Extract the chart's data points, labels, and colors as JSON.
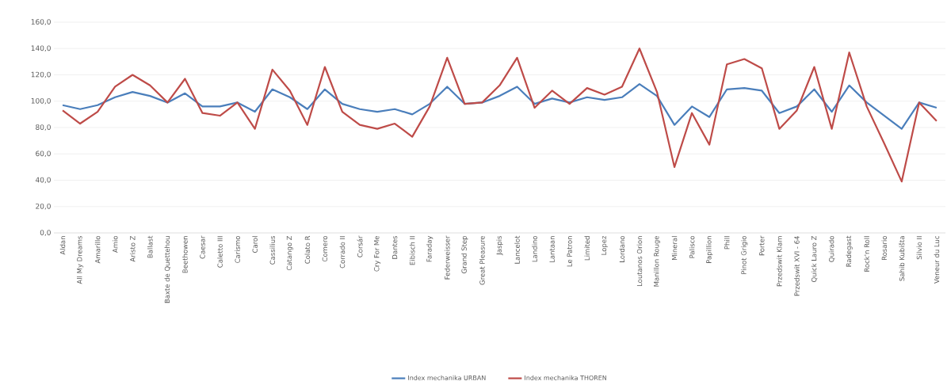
{
  "chart_data": {
    "type": "line",
    "categories": [
      "Aldan",
      "All My Dreams",
      "Amarillo",
      "Amio",
      "Aristo Z",
      "Ballast",
      "Baxte de Quettehou",
      "Beethowen",
      "Caesar",
      "Caletto III",
      "Carismo",
      "Carol",
      "Cassilius",
      "Catango Z",
      "Colato R",
      "Comero",
      "Corrado II",
      "Corsár",
      "Cry For Me",
      "Dantes",
      "Eibisch II",
      "Faraday",
      "Federweisser",
      "Grand Step",
      "Great Pleasure",
      "Jaspis",
      "Lancelot",
      "Landino",
      "Lantaan",
      "Le Patron",
      "Limited",
      "Lopez",
      "Lordano",
      "Loutanos Orion",
      "Manillon Rouge",
      "Mineral",
      "Palisco",
      "Papillion",
      "Phill",
      "Pinot Grigio",
      "Porter",
      "Przedswit Klam",
      "Przedswit XVI - 64",
      "Quick Lauro Z",
      "Quirado",
      "Radegast",
      "Rock'n Roll",
      "Rosario",
      "Sahib Kubišta",
      "Silvio II",
      "Veneur du Luc"
    ],
    "series": [
      {
        "name": "Index mechanika URBAN",
        "color": "#4a7ebb",
        "values": [
          97,
          94,
          97,
          103,
          107,
          104,
          99,
          106,
          96,
          96,
          99,
          92,
          109,
          103,
          94,
          109,
          98,
          94,
          92,
          94,
          90,
          98,
          111,
          98,
          99,
          104,
          111,
          98,
          102,
          99,
          103,
          101,
          103,
          113,
          104,
          82,
          96,
          88,
          109,
          110,
          108,
          91,
          96,
          109,
          92,
          112,
          99,
          89,
          79,
          99,
          95
        ]
      },
      {
        "name": "Index mechanika THOREN",
        "color": "#be4b48",
        "values": [
          93,
          83,
          92,
          111,
          120,
          112,
          99,
          117,
          91,
          89,
          99,
          79,
          124,
          108,
          82,
          126,
          92,
          82,
          79,
          83,
          73,
          96,
          133,
          98,
          99,
          112,
          133,
          95,
          108,
          98,
          110,
          105,
          111,
          140,
          107,
          50,
          91,
          67,
          128,
          132,
          125,
          79,
          93,
          126,
          79,
          137,
          96,
          68,
          39,
          99,
          85
        ]
      }
    ],
    "ylim": [
      0,
      160
    ],
    "yticks": [
      {
        "value": 0,
        "label": "0,0"
      },
      {
        "value": 20,
        "label": "20,0"
      },
      {
        "value": 40,
        "label": "40,0"
      },
      {
        "value": 60,
        "label": "60,0"
      },
      {
        "value": 80,
        "label": "80,0"
      },
      {
        "value": 100,
        "label": "100,0"
      },
      {
        "value": 120,
        "label": "120,0"
      },
      {
        "value": 140,
        "label": "140,0"
      },
      {
        "value": 160,
        "label": "160,0"
      }
    ],
    "grid": "y",
    "legend": "bottom",
    "marker": "none",
    "line_style": "solid"
  }
}
